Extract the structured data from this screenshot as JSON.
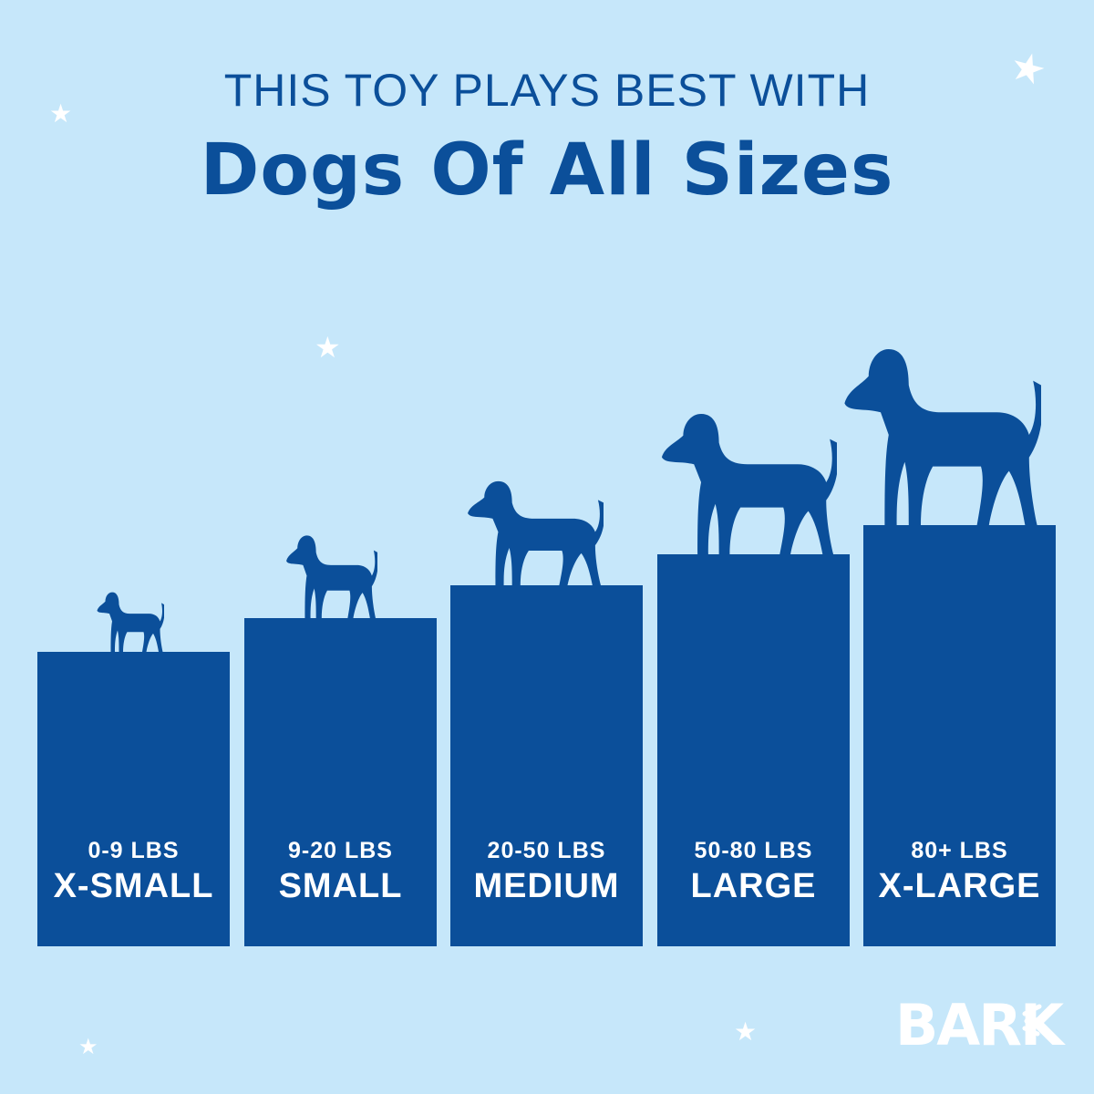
{
  "header": {
    "line1": "THIS TOY PLAYS BEST WITH",
    "line2": "Dogs Of All Sizes"
  },
  "sizes": [
    {
      "weight": "0-9 LBS",
      "label": "X-SMALL"
    },
    {
      "weight": "9-20 LBS",
      "label": "SMALL"
    },
    {
      "weight": "20-50 LBS",
      "label": "MEDIUM"
    },
    {
      "weight": "50-80 LBS",
      "label": "LARGE"
    },
    {
      "weight": "80+ LBS",
      "label": "X-LARGE"
    }
  ],
  "brand": {
    "logo": "BARK"
  },
  "colors": {
    "background": "#c6e7fa",
    "primary": "#0b4f9a",
    "accent": "#ffffff"
  },
  "icons": [
    "star-icon",
    "dog-silhouette-icon"
  ]
}
